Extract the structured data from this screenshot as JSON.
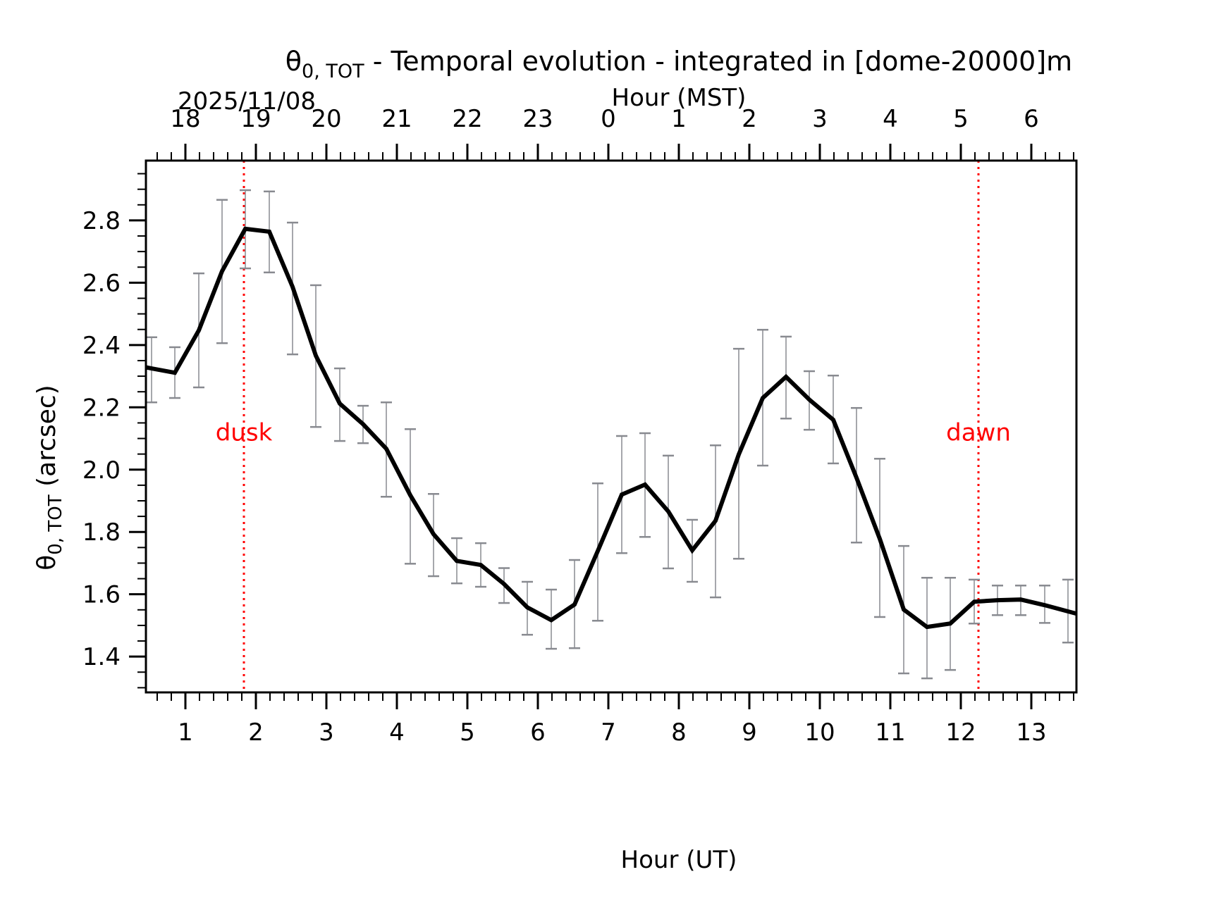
{
  "chart_data": {
    "type": "line",
    "title": "θ0,TOT - Temporal evolution - integrated in [dome-20000]m",
    "title_symbol": "θ",
    "title_sub": "0, TOT",
    "title_rest": " - Temporal evolution - integrated in [dome-20000]m",
    "date_label": "2025/11/08",
    "xlabel": "Hour (UT)",
    "xlabel_top": "Hour (MST)",
    "ylabel_symbol": "θ",
    "ylabel_sub": "0, TOT",
    "ylabel_rest": " (arcsec)",
    "xlim": [
      0.44,
      13.64
    ],
    "ylim": [
      1.285,
      2.992
    ],
    "x_ticks": [
      1,
      2,
      3,
      4,
      5,
      6,
      7,
      8,
      9,
      10,
      11,
      12,
      13
    ],
    "x_tick_labels": [
      "1",
      "2",
      "3",
      "4",
      "5",
      "6",
      "7",
      "8",
      "9",
      "10",
      "11",
      "12",
      "13"
    ],
    "top_x_ticks_ut": [
      1,
      2,
      3,
      4,
      5,
      6,
      7,
      8,
      9,
      10,
      11,
      12,
      13
    ],
    "top_x_tick_labels": [
      "18",
      "19",
      "20",
      "21",
      "22",
      "23",
      "0",
      "1",
      "2",
      "3",
      "4",
      "5",
      "6"
    ],
    "y_ticks": [
      1.4,
      1.6,
      1.8,
      2.0,
      2.2,
      2.4,
      2.6,
      2.8
    ],
    "y_tick_labels": [
      "1.4",
      "1.6",
      "1.8",
      "2.0",
      "2.2",
      "2.4",
      "2.6",
      "2.8"
    ],
    "grid": false,
    "annotations": [
      {
        "label": "dusk",
        "x": 1.83,
        "color": "#ff0000",
        "style": "dotted"
      },
      {
        "label": "dawn",
        "x": 12.25,
        "color": "#ff0000",
        "style": "dotted"
      }
    ],
    "series": [
      {
        "name": "theta0_TOT",
        "color": "#000000",
        "errorbar_color": "#888a90",
        "x": [
          0.52,
          0.85,
          1.19,
          1.52,
          1.85,
          2.19,
          2.52,
          2.85,
          3.19,
          3.52,
          3.85,
          4.19,
          4.52,
          4.85,
          5.19,
          5.52,
          5.85,
          6.19,
          6.52,
          6.85,
          7.19,
          7.52,
          7.85,
          8.19,
          8.52,
          8.85,
          9.19,
          9.52,
          9.85,
          10.19,
          10.52,
          10.85,
          11.19,
          11.52,
          11.85,
          12.19,
          12.52,
          12.85,
          13.19,
          13.52
        ],
        "y": [
          2.325,
          2.311,
          2.447,
          2.637,
          2.773,
          2.764,
          2.587,
          2.366,
          2.212,
          2.146,
          2.067,
          1.918,
          1.793,
          1.707,
          1.694,
          1.633,
          1.558,
          1.517,
          1.567,
          1.739,
          1.92,
          1.952,
          1.866,
          1.741,
          1.836,
          2.049,
          2.23,
          2.298,
          2.225,
          2.16,
          1.974,
          1.778,
          1.551,
          1.495,
          1.506,
          1.576,
          1.581,
          1.583,
          1.565,
          1.545
        ],
        "err_high": [
          2.425,
          2.393,
          2.63,
          2.866,
          2.897,
          2.893,
          2.793,
          2.592,
          2.325,
          2.205,
          2.216,
          2.13,
          1.922,
          1.78,
          1.764,
          1.684,
          1.64,
          1.615,
          1.71,
          1.956,
          2.108,
          2.117,
          2.045,
          1.839,
          2.078,
          2.388,
          2.449,
          2.427,
          2.316,
          2.302,
          2.198,
          2.035,
          1.755,
          1.653,
          1.653,
          1.647,
          1.628,
          1.628,
          1.628,
          1.647
        ],
        "err_low": [
          2.216,
          2.23,
          2.264,
          2.406,
          2.646,
          2.633,
          2.37,
          2.137,
          2.092,
          2.085,
          1.913,
          1.698,
          1.658,
          1.635,
          1.624,
          1.572,
          1.47,
          1.425,
          1.427,
          1.515,
          1.732,
          1.784,
          1.683,
          1.64,
          1.59,
          1.714,
          2.013,
          2.164,
          2.128,
          2.02,
          1.766,
          1.527,
          1.346,
          1.33,
          1.357,
          1.506,
          1.533,
          1.533,
          1.508,
          1.445
        ]
      }
    ]
  }
}
